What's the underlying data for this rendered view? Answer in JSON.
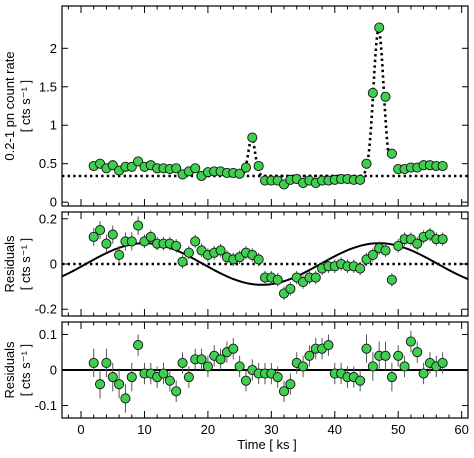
{
  "chart_data": {
    "type": "scatter",
    "xlabel": "Time [ ks ]",
    "xlim": [
      -3,
      61
    ],
    "xticks": [
      0,
      10,
      20,
      30,
      40,
      50,
      60
    ],
    "x": [
      2,
      3,
      4,
      5,
      6,
      7,
      8,
      9,
      10,
      11,
      12,
      13,
      14,
      15,
      16,
      17,
      18,
      19,
      20,
      21,
      22,
      23,
      24,
      25,
      26,
      27,
      28,
      29,
      30,
      31,
      32,
      33,
      34,
      35,
      36,
      37,
      38,
      39,
      40,
      41,
      42,
      43,
      44,
      45,
      46,
      47,
      48,
      49,
      50,
      51,
      52,
      53,
      54,
      55,
      56,
      57
    ],
    "panels": [
      {
        "id": "rate",
        "ylabel_line1": "0.2-1 pn count rate",
        "ylabel_line2": "[ cts s⁻¹ ]",
        "ylim": [
          -0.05,
          2.55
        ],
        "yticks": [
          0,
          0.5,
          1,
          1.5,
          2
        ],
        "ytick_labels": [
          "0",
          "0.5",
          "1",
          "1.5",
          "2"
        ],
        "y": [
          0.47,
          0.5,
          0.44,
          0.48,
          0.41,
          0.46,
          0.46,
          0.53,
          0.46,
          0.48,
          0.44,
          0.44,
          0.43,
          0.44,
          0.36,
          0.4,
          0.44,
          0.34,
          0.39,
          0.4,
          0.4,
          0.38,
          0.38,
          0.37,
          0.45,
          0.84,
          0.47,
          0.28,
          0.28,
          0.28,
          0.23,
          0.29,
          0.3,
          0.25,
          0.28,
          0.25,
          0.28,
          0.28,
          0.29,
          0.3,
          0.3,
          0.29,
          0.29,
          0.5,
          1.42,
          2.27,
          1.37,
          0.63,
          0.43,
          0.43,
          0.45,
          0.45,
          0.48,
          0.48,
          0.47,
          0.47
        ],
        "err": [
          0.03,
          0.03,
          0.03,
          0.03,
          0.03,
          0.03,
          0.03,
          0.03,
          0.03,
          0.03,
          0.03,
          0.03,
          0.03,
          0.03,
          0.03,
          0.03,
          0.03,
          0.03,
          0.03,
          0.03,
          0.03,
          0.03,
          0.03,
          0.03,
          0.03,
          0.04,
          0.03,
          0.03,
          0.03,
          0.03,
          0.03,
          0.03,
          0.03,
          0.03,
          0.03,
          0.03,
          0.03,
          0.03,
          0.03,
          0.03,
          0.03,
          0.03,
          0.03,
          0.03,
          0.05,
          0.06,
          0.05,
          0.04,
          0.03,
          0.03,
          0.03,
          0.03,
          0.03,
          0.03,
          0.03,
          0.03
        ],
        "model": "flare",
        "model_style": "dotted",
        "baseline": 0.34,
        "baseline_style": "dotted"
      },
      {
        "id": "res1",
        "ylabel_line1": "Residuals",
        "ylabel_line2": "[ cts s⁻¹ ]",
        "ylim": [
          -0.23,
          0.23
        ],
        "yticks": [
          -0.2,
          0,
          0.2
        ],
        "ytick_labels": [
          "-0.2",
          "0",
          "0.2"
        ],
        "y": [
          0.12,
          0.15,
          0.09,
          0.13,
          0.04,
          0.1,
          0.1,
          0.17,
          0.1,
          0.12,
          0.09,
          0.09,
          0.09,
          0.08,
          0.01,
          0.05,
          0.1,
          0.06,
          0.04,
          0.05,
          0.06,
          0.03,
          0.02,
          0.03,
          0.05,
          0.04,
          0.02,
          -0.06,
          -0.06,
          -0.07,
          -0.13,
          -0.11,
          -0.06,
          -0.08,
          -0.06,
          -0.06,
          -0.02,
          -0.01,
          -0.01,
          0.0,
          -0.01,
          -0.01,
          -0.02,
          0.02,
          0.04,
          0.07,
          0.06,
          -0.07,
          0.08,
          0.11,
          0.11,
          0.09,
          0.12,
          0.13,
          0.11,
          0.11
        ],
        "err": [
          0.04,
          0.04,
          0.04,
          0.04,
          0.04,
          0.04,
          0.04,
          0.04,
          0.03,
          0.03,
          0.03,
          0.03,
          0.03,
          0.03,
          0.03,
          0.03,
          0.03,
          0.03,
          0.03,
          0.03,
          0.03,
          0.03,
          0.03,
          0.03,
          0.03,
          0.03,
          0.03,
          0.03,
          0.03,
          0.03,
          0.03,
          0.03,
          0.03,
          0.03,
          0.03,
          0.03,
          0.03,
          0.03,
          0.03,
          0.03,
          0.03,
          0.03,
          0.03,
          0.03,
          0.03,
          0.03,
          0.03,
          0.03,
          0.03,
          0.03,
          0.03,
          0.03,
          0.03,
          0.03,
          0.03,
          0.03
        ],
        "model": "sinusoid",
        "model_style": "solid",
        "sinusoid": {
          "amplitude": 0.092,
          "period_ks": 37,
          "peak_at_ks": 10
        },
        "baseline": 0,
        "baseline_style": "dotted"
      },
      {
        "id": "res2",
        "ylabel_line1": "Residuals",
        "ylabel_line2": "[ cts s⁻¹ ]",
        "ylim": [
          -0.135,
          0.135
        ],
        "yticks": [
          -0.1,
          0,
          0.1
        ],
        "ytick_labels": [
          "-0.1",
          "0",
          "0.1"
        ],
        "y": [
          0.02,
          -0.04,
          0.02,
          -0.02,
          -0.04,
          -0.08,
          -0.02,
          0.07,
          -0.01,
          -0.01,
          -0.02,
          -0.01,
          -0.03,
          -0.06,
          0.02,
          -0.02,
          0.03,
          0.03,
          0.01,
          0.04,
          0.03,
          0.05,
          0.06,
          0.01,
          -0.03,
          0.0,
          -0.01,
          -0.01,
          -0.01,
          -0.02,
          -0.06,
          -0.04,
          0.02,
          0.01,
          0.04,
          0.06,
          0.06,
          0.07,
          -0.01,
          -0.01,
          -0.02,
          -0.02,
          -0.03,
          0.06,
          0.01,
          0.04,
          0.04,
          -0.02,
          0.04,
          0.01,
          0.08,
          0.05,
          -0.01,
          0.02,
          0.01,
          0.02
        ],
        "err": [
          0.04,
          0.04,
          0.04,
          0.04,
          0.04,
          0.04,
          0.04,
          0.03,
          0.03,
          0.03,
          0.03,
          0.03,
          0.03,
          0.03,
          0.03,
          0.03,
          0.03,
          0.03,
          0.03,
          0.03,
          0.03,
          0.03,
          0.03,
          0.03,
          0.03,
          0.03,
          0.03,
          0.03,
          0.03,
          0.03,
          0.03,
          0.03,
          0.03,
          0.03,
          0.03,
          0.03,
          0.03,
          0.03,
          0.03,
          0.03,
          0.03,
          0.03,
          0.03,
          0.04,
          0.04,
          0.04,
          0.04,
          0.04,
          0.03,
          0.03,
          0.03,
          0.03,
          0.03,
          0.03,
          0.03,
          0.03
        ],
        "model": "zero",
        "model_style": "solid"
      }
    ],
    "marker_color": "#3fcf4f",
    "grid": false,
    "legend": "none"
  }
}
